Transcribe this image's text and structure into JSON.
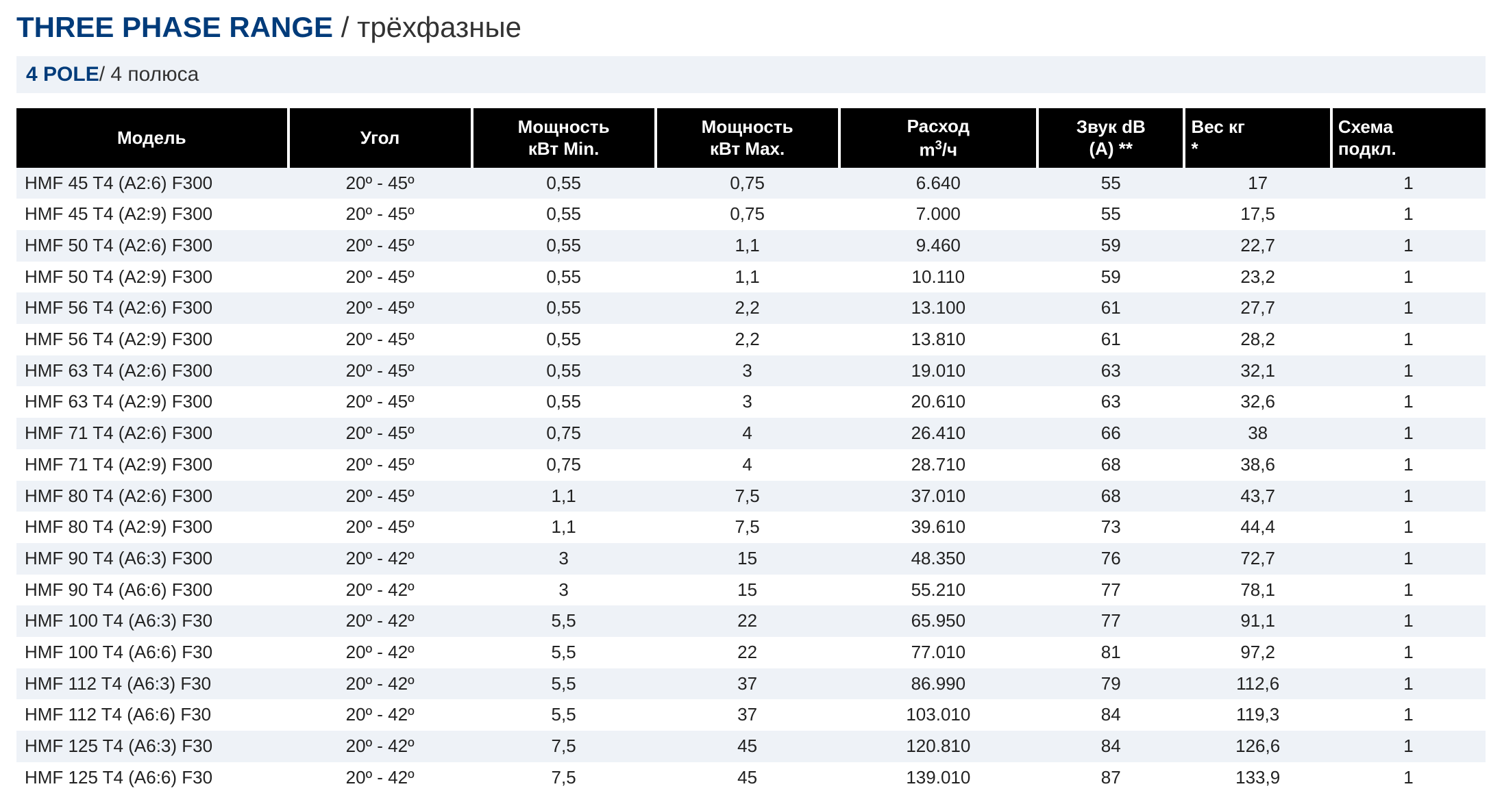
{
  "heading": {
    "main": "THREE PHASE RANGE",
    "separator": " / ",
    "sub": "трёхфазные",
    "title_color": "#003b7a",
    "sub_color": "#333333",
    "fontsize_pt": 32
  },
  "subheading": {
    "main": "4 POLE",
    "separator": "/ ",
    "sub": "4 полюса",
    "bar_bg": "#eef2f7",
    "main_color": "#003b7a",
    "fontsize_pt": 22
  },
  "table": {
    "header_bg": "#000000",
    "header_fg": "#ffffff",
    "row_stripe_bg": "#eef2f7",
    "row_plain_bg": "#ffffff",
    "font_color": "#222222",
    "fontsize_pt": 20,
    "columns": [
      {
        "key": "model",
        "label": "Модель",
        "align": "left",
        "width_pct": 18.5
      },
      {
        "key": "angle",
        "label": "Угол",
        "align": "center",
        "width_pct": 12.5
      },
      {
        "key": "pmin",
        "label": "Мощность\nкВт Min.",
        "align": "center",
        "width_pct": 12.5
      },
      {
        "key": "pmax",
        "label": "Мощность\nкВт Max.",
        "align": "center",
        "width_pct": 12.5
      },
      {
        "key": "flow",
        "label_html": "Расход<br>m<sup>3</sup>/ч",
        "align": "center",
        "width_pct": 13.5
      },
      {
        "key": "sound",
        "label": "Звук dB\n(A) **",
        "align": "center",
        "width_pct": 10
      },
      {
        "key": "weight",
        "label_html": "Вес кг<br>*",
        "align": "left-head",
        "width_pct": 10
      },
      {
        "key": "wire",
        "label": "Схема\nподкл.",
        "align": "left-head",
        "width_pct": 10.5
      }
    ],
    "rows": [
      [
        "HMF 45 T4 (A2:6) F300",
        "20º - 45º",
        "0,55",
        "0,75",
        "6.640",
        "55",
        "17",
        "1"
      ],
      [
        "HMF 45 T4 (A2:9) F300",
        "20º - 45º",
        "0,55",
        "0,75",
        "7.000",
        "55",
        "17,5",
        "1"
      ],
      [
        "HMF 50 T4 (A2:6) F300",
        "20º - 45º",
        "0,55",
        "1,1",
        "9.460",
        "59",
        "22,7",
        "1"
      ],
      [
        "HMF 50 T4 (A2:9) F300",
        "20º - 45º",
        "0,55",
        "1,1",
        "10.110",
        "59",
        "23,2",
        "1"
      ],
      [
        "HMF 56 T4 (A2:6) F300",
        "20º - 45º",
        "0,55",
        "2,2",
        "13.100",
        "61",
        "27,7",
        "1"
      ],
      [
        "HMF 56 T4 (A2:9) F300",
        "20º - 45º",
        "0,55",
        "2,2",
        "13.810",
        "61",
        "28,2",
        "1"
      ],
      [
        "HMF 63 T4 (A2:6) F300",
        "20º - 45º",
        "0,55",
        "3",
        "19.010",
        "63",
        "32,1",
        "1"
      ],
      [
        "HMF 63 T4 (A2:9) F300",
        "20º - 45º",
        "0,55",
        "3",
        "20.610",
        "63",
        "32,6",
        "1"
      ],
      [
        "HMF 71 T4 (A2:6) F300",
        "20º - 45º",
        "0,75",
        "4",
        "26.410",
        "66",
        "38",
        "1"
      ],
      [
        "HMF 71 T4 (A2:9) F300",
        "20º - 45º",
        "0,75",
        "4",
        "28.710",
        "68",
        "38,6",
        "1"
      ],
      [
        "HMF 80 T4 (A2:6) F300",
        "20º - 45º",
        "1,1",
        "7,5",
        "37.010",
        "68",
        "43,7",
        "1"
      ],
      [
        "HMF 80 T4 (A2:9) F300",
        "20º - 45º",
        "1,1",
        "7,5",
        "39.610",
        "73",
        "44,4",
        "1"
      ],
      [
        "HMF 90 T4 (A6:3) F300",
        "20º - 42º",
        "3",
        "15",
        "48.350",
        "76",
        "72,7",
        "1"
      ],
      [
        "HMF 90 T4 (A6:6) F300",
        "20º - 42º",
        "3",
        "15",
        "55.210",
        "77",
        "78,1",
        "1"
      ],
      [
        "HMF 100 T4 (A6:3) F30",
        "20º - 42º",
        "5,5",
        "22",
        "65.950",
        "77",
        "91,1",
        "1"
      ],
      [
        "HMF 100 T4 (A6:6) F30",
        "20º - 42º",
        "5,5",
        "22",
        "77.010",
        "81",
        "97,2",
        "1"
      ],
      [
        "HMF 112 T4 (A6:3) F30",
        "20º - 42º",
        "5,5",
        "37",
        "86.990",
        "79",
        "112,6",
        "1"
      ],
      [
        "HMF 112 T4 (A6:6) F30",
        "20º - 42º",
        "5,5",
        "37",
        "103.010",
        "84",
        "119,3",
        "1"
      ],
      [
        "HMF 125 T4 (A6:3) F30",
        "20º - 42º",
        "7,5",
        "45",
        "120.810",
        "84",
        "126,6",
        "1"
      ],
      [
        "HMF 125 T4 (A6:6) F30",
        "20º  - 42º",
        "7,5",
        "45",
        "139.010",
        "87",
        "133,9",
        "1"
      ]
    ]
  }
}
